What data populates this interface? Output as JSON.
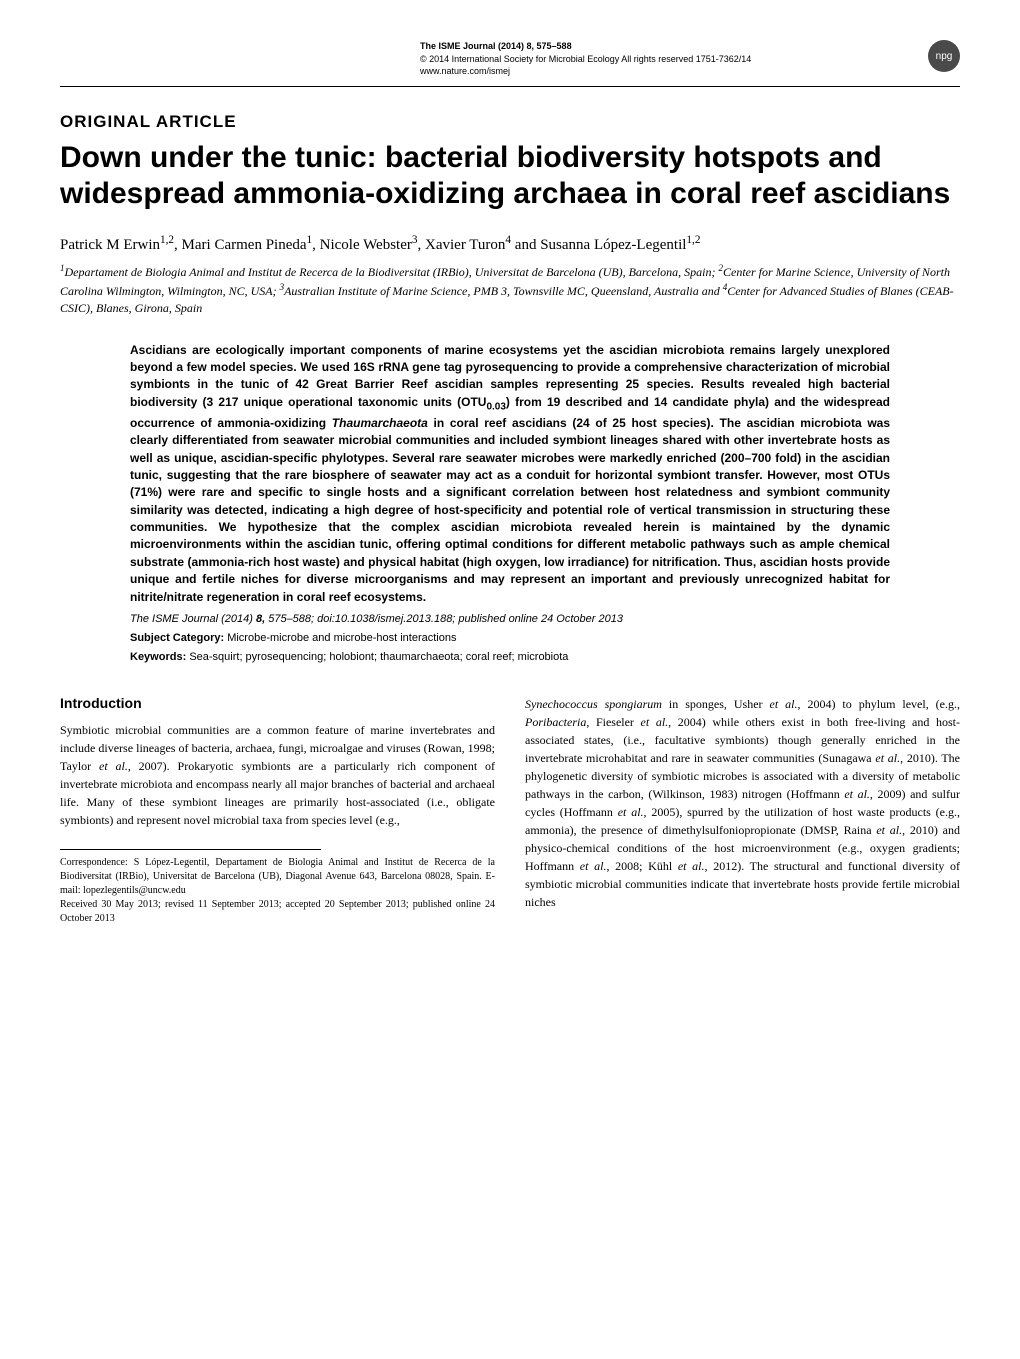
{
  "header": {
    "journal": "The ISME Journal (2014) 8, 575–588",
    "copyright": "© 2014 International Society for Microbial Ecology  All rights reserved 1751-7362/14",
    "url": "www.nature.com/ismej",
    "badge": "npg"
  },
  "article": {
    "type": "ORIGINAL ARTICLE",
    "title": "Down under the tunic: bacterial biodiversity hotspots and widespread ammonia-oxidizing archaea in coral reef ascidians",
    "authors_html": "Patrick M Erwin<sup>1,2</sup>, Mari Carmen Pineda<sup>1</sup>, Nicole Webster<sup>3</sup>, Xavier Turon<sup>4</sup> and Susanna López-Legentil<sup>1,2</sup>",
    "affiliations_html": "<sup>1</sup>Departament de Biologia Animal and Institut de Recerca de la Biodiversitat (IRBio), Universitat de Barcelona (UB), Barcelona, Spain; <sup>2</sup>Center for Marine Science, University of North Carolina Wilmington, Wilmington, NC, USA; <sup>3</sup>Australian Institute of Marine Science, PMB 3, Townsville MC, Queensland, Australia and <sup>4</sup>Center for Advanced Studies of Blanes (CEAB-CSIC), Blanes, Girona, Spain"
  },
  "abstract": {
    "text_html": "Ascidians are ecologically important components of marine ecosystems yet the ascidian microbiota remains largely unexplored beyond a few model species. We used 16S rRNA gene tag pyrosequencing to provide a comprehensive characterization of microbial symbionts in the tunic of 42 Great Barrier Reef ascidian samples representing 25 species. Results revealed high bacterial biodiversity (3 217 unique operational taxonomic units (OTU<sub>0.03</sub>) from 19 described and 14 candidate phyla) and the widespread occurrence of ammonia-oxidizing <i>Thaumarchaeota</i> in coral reef ascidians (24 of 25 host species). The ascidian microbiota was clearly differentiated from seawater microbial communities and included symbiont lineages shared with other invertebrate hosts as well as unique, ascidian-specific phylotypes. Several rare seawater microbes were markedly enriched (200–700 fold) in the ascidian tunic, suggesting that the rare biosphere of seawater may act as a conduit for horizontal symbiont transfer. However, most OTUs (71%) were rare and specific to single hosts and a significant correlation between host relatedness and symbiont community similarity was detected, indicating a high degree of host-specificity and potential role of vertical transmission in structuring these communities. We hypothesize that the complex ascidian microbiota revealed herein is maintained by the dynamic microenvironments within the ascidian tunic, offering optimal conditions for different metabolic pathways such as ample chemical substrate (ammonia-rich host waste) and physical habitat (high oxygen, low irradiance) for nitrification. Thus, ascidian hosts provide unique and fertile niches for diverse microorganisms and may represent an important and previously unrecognized habitat for nitrite/nitrate regeneration in coral reef ecosystems.",
    "citation_html": "<i>The ISME Journal</i> (2014) <b>8,</b> 575–588; doi:10.1038/ismej.2013.188; published online 24 October 2013",
    "subject_label": "Subject Category:",
    "subject_text": "Microbe-microbe and microbe-host interactions",
    "keywords_label": "Keywords:",
    "keywords_text": "Sea-squirt; pyrosequencing; holobiont; thaumarchaeota; coral reef; microbiota"
  },
  "body": {
    "introduction_heading": "Introduction",
    "left_column_html": "Symbiotic microbial communities are a common feature of marine invertebrates and include diverse lineages of bacteria, archaea, fungi, microalgae and viruses (Rowan, 1998; Taylor <i>et al.</i>, 2007). Prokaryotic symbionts are a particularly rich component of invertebrate microbiota and encompass nearly all major branches of bacterial and archaeal life. Many of these symbiont lineages are primarily host-associated (i.e., obligate symbionts) and represent novel microbial taxa from species level (e.g.,",
    "right_column_html": "<i>Synechococcus spongiarum</i> in sponges, Usher <i>et al.</i>, 2004) to phylum level, (e.g., <i>Poribacteria</i>, Fieseler <i>et al.</i>, 2004) while others exist in both free-living and host-associated states, (i.e., facultative symbionts) though generally enriched in the invertebrate microhabitat and rare in seawater communities (Sunagawa <i>et al.</i>, 2010). The phylogenetic diversity of symbiotic microbes is associated with a diversity of metabolic pathways in the carbon, (Wilkinson, 1983) nitrogen (Hoffmann <i>et al.</i>, 2009) and sulfur cycles (Hoffmann <i>et al.</i>, 2005), spurred by the utilization of host waste products (e.g., ammonia), the presence of dimethylsulfoniopropionate (DMSP, Raina <i>et al.</i>, 2010) and physico-chemical conditions of the host microenvironment (e.g., oxygen gradients; Hoffmann <i>et al.</i>, 2008; Kühl <i>et al.</i>, 2012). The structural and functional diversity of symbiotic microbial communities indicate that invertebrate hosts provide fertile microbial niches"
  },
  "correspondence": {
    "text": "Correspondence: S López-Legentil, Departament de Biologia Animal and Institut de Recerca de la Biodiversitat (IRBio), Universitat de Barcelona (UB), Diagonal Avenue 643, Barcelona 08028, Spain. E-mail: lopezlegentils@uncw.edu",
    "received": "Received 30 May 2013; revised 11 September 2013; accepted 20 September 2013; published online 24 October 2013"
  },
  "styles": {
    "body_font": "Georgia, serif",
    "sans_font": "Arial, Helvetica, sans-serif",
    "title_fontsize": 30,
    "body_fontsize": 12,
    "abstract_fontsize": 12,
    "text_color": "#000000",
    "background_color": "#ffffff",
    "badge_bg": "#4a4a4a"
  }
}
